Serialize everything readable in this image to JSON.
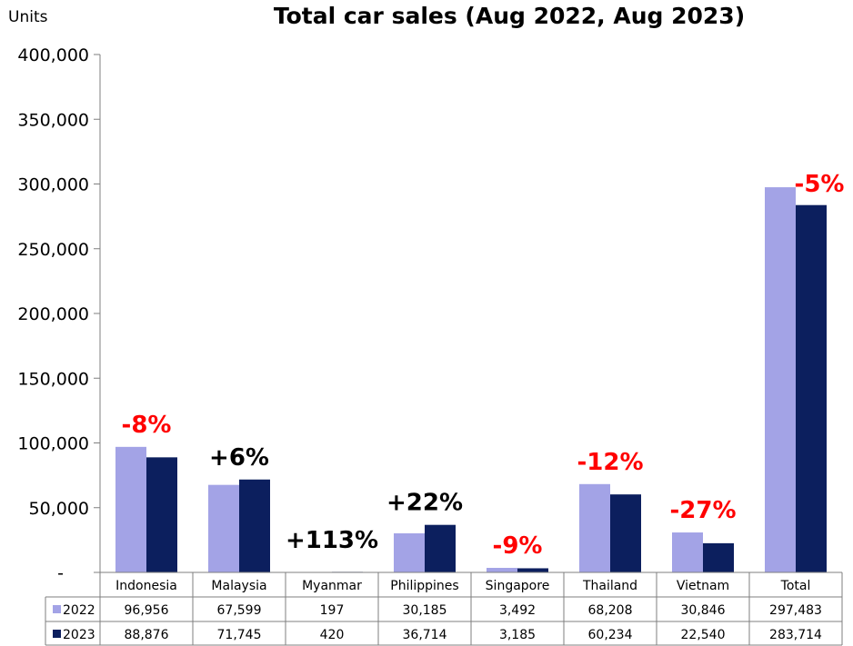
{
  "chart_data": {
    "type": "bar",
    "title": "Total car sales (Aug 2022, Aug 2023)",
    "ylabel": "Units",
    "ylim": [
      0,
      400000
    ],
    "yticks": [
      "-",
      "50,000",
      "100,000",
      "150,000",
      "200,000",
      "250,000",
      "300,000",
      "350,000",
      "400,000"
    ],
    "categories": [
      "Indonesia",
      "Malaysia",
      "Myanmar",
      "Philippines",
      "Singapore",
      "Thailand",
      "Vietnam",
      "Total"
    ],
    "series": [
      {
        "name": "2022",
        "color": "#a3a3e6",
        "values": [
          96956,
          67599,
          197,
          30185,
          3492,
          68208,
          30846,
          297483
        ],
        "labels": [
          "96,956",
          "67,599",
          "197",
          "30,185",
          "3,492",
          "68,208",
          "30,846",
          "297,483"
        ]
      },
      {
        "name": "2023",
        "color": "#0c1f5e",
        "values": [
          88876,
          71745,
          420,
          36714,
          3185,
          60234,
          22540,
          283714
        ],
        "labels": [
          "88,876",
          "71,745",
          "420",
          "36,714",
          "3,185",
          "60,234",
          "22,540",
          "283,714"
        ]
      }
    ],
    "annotations": [
      {
        "category": "Indonesia",
        "text": "-8%",
        "color": "#ff0000"
      },
      {
        "category": "Malaysia",
        "text": "+6%",
        "color": "#000000"
      },
      {
        "category": "Myanmar",
        "text": "+113%",
        "color": "#000000"
      },
      {
        "category": "Philippines",
        "text": "+22%",
        "color": "#000000"
      },
      {
        "category": "Singapore",
        "text": "-9%",
        "color": "#ff0000"
      },
      {
        "category": "Thailand",
        "text": "-12%",
        "color": "#ff0000"
      },
      {
        "category": "Vietnam",
        "text": "-27%",
        "color": "#ff0000"
      },
      {
        "category": "Total",
        "text": "-5%",
        "color": "#ff0000"
      }
    ],
    "data_table": true,
    "grid": false
  }
}
